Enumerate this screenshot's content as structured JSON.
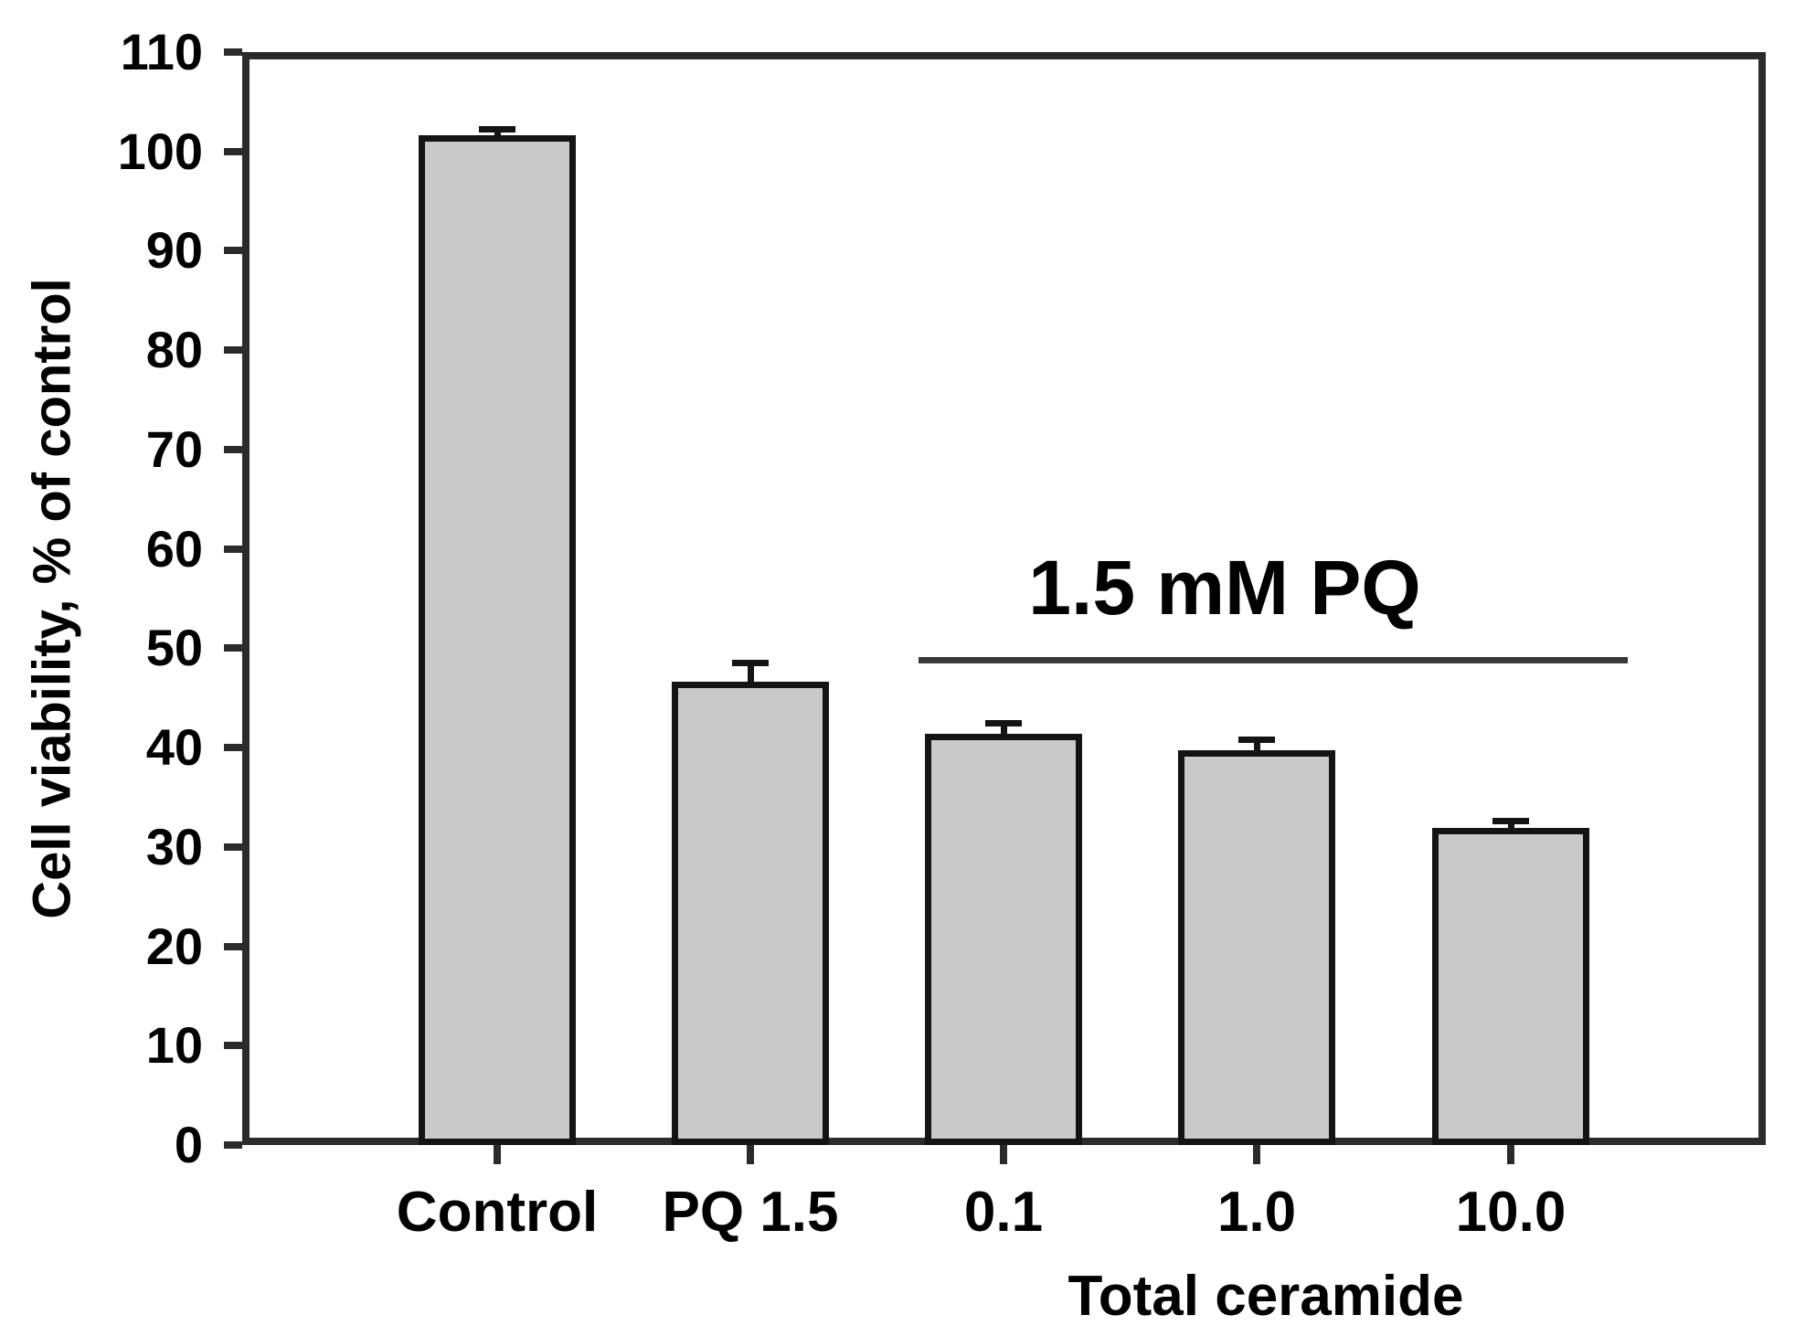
{
  "chart_data": {
    "type": "bar",
    "title": "",
    "ylabel": "Cell viability, % of control",
    "xlabel": "Total ceramide",
    "categories": [
      "Control",
      "PQ 1.5",
      "0.1",
      "1.0",
      "10.0"
    ],
    "values": [
      101.6,
      46.6,
      41.4,
      39.7,
      31.9
    ],
    "errors": [
      0.6,
      1.9,
      1.0,
      1.1,
      0.7
    ],
    "ylim": [
      0,
      110
    ],
    "yticks": [
      0,
      10,
      20,
      30,
      40,
      50,
      60,
      70,
      80,
      90,
      100,
      110
    ],
    "xlabel_applies_to": [
      "0.1",
      "1.0",
      "10.0"
    ],
    "annotation": {
      "text": "1.5 mM PQ",
      "spans_categories": [
        "0.1",
        "1.0",
        "10.0"
      ]
    },
    "legend": null,
    "grid": false,
    "colors": {
      "bar_fill": "#c9c9c9",
      "bar_border": "#141414",
      "axis": "#2b2b2b",
      "annotation_line": "#383838",
      "text": "#000000",
      "background": "#ffffff"
    }
  }
}
